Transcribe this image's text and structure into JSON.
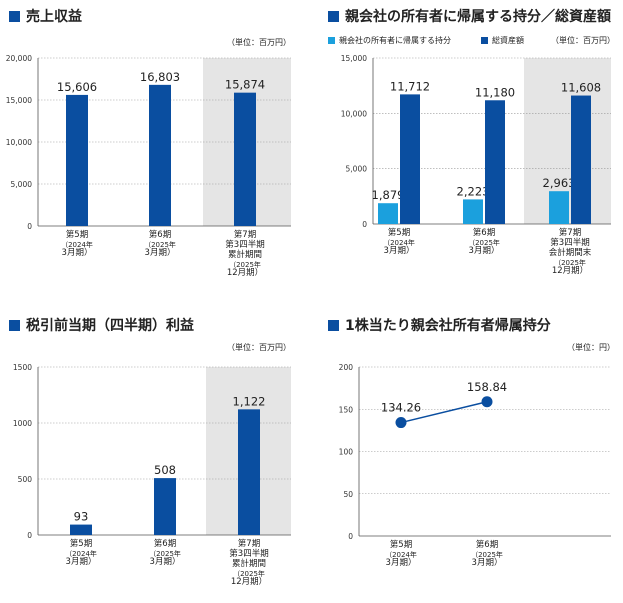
{
  "colors": {
    "dark": "#0a4ea0",
    "light": "#1ba0dd",
    "shade": "#e5e5e5",
    "axis": "#555555",
    "grid": "#999999"
  },
  "chart_data": [
    {
      "id": "revenue",
      "type": "bar",
      "title": "売上収益",
      "unit": "（単位：百万円）",
      "ylim": [
        0,
        20000
      ],
      "yticks": [
        "20,000",
        "15,000",
        "10,000",
        "5,000",
        "0"
      ],
      "ytick_values": [
        20000,
        15000,
        10000,
        5000,
        0
      ],
      "categories": [
        [
          "第5期",
          "（2024年",
          "3月期）"
        ],
        [
          "第6期",
          "（2025年",
          "3月期）"
        ],
        [
          "第7期",
          "第3四半期",
          "累計期間",
          "（2025年",
          "12月期）"
        ]
      ],
      "shaded_category": 2,
      "series": [
        {
          "name": "売上収益",
          "values": [
            15606,
            16803,
            15874
          ],
          "labels": [
            "15,606",
            "16,803",
            "15,874"
          ]
        }
      ]
    },
    {
      "id": "equity",
      "type": "bar",
      "title": "親会社の所有者に帰属する持分／総資産額",
      "unit": "（単位：百万円）",
      "legend": [
        "親会社の所有者に帰属する持分",
        "総資産額"
      ],
      "ylim": [
        0,
        15000
      ],
      "yticks": [
        "15,000",
        "10,000",
        "5,000",
        "0"
      ],
      "ytick_values": [
        15000,
        10000,
        5000,
        0
      ],
      "categories": [
        [
          "第5期",
          "（2024年",
          "3月期）"
        ],
        [
          "第6期",
          "（2025年",
          "3月期）"
        ],
        [
          "第7期",
          "第3四半期",
          "会計期間末",
          "（2025年",
          "12月期）"
        ]
      ],
      "shaded_category": 2,
      "series": [
        {
          "name": "親会社の所有者に帰属する持分",
          "values": [
            1879,
            2223,
            2963
          ],
          "labels": [
            "1,879",
            "2,223",
            "2,963"
          ]
        },
        {
          "name": "総資産額",
          "values": [
            11712,
            11180,
            11608
          ],
          "labels": [
            "11,712",
            "11,180",
            "11,608"
          ]
        }
      ]
    },
    {
      "id": "pretax",
      "type": "bar",
      "title": "税引前当期（四半期）利益",
      "unit": "（単位：百万円）",
      "ylim": [
        0,
        1500
      ],
      "yticks": [
        "1500",
        "1000",
        "500",
        "0"
      ],
      "ytick_values": [
        1500,
        1000,
        500,
        0
      ],
      "categories": [
        [
          "第5期",
          "（2024年",
          "3月期）"
        ],
        [
          "第6期",
          "（2025年",
          "3月期）"
        ],
        [
          "第7期",
          "第3四半期",
          "累計期間",
          "（2025年",
          "12月期）"
        ]
      ],
      "shaded_category": 2,
      "series": [
        {
          "name": "税引前利益",
          "values": [
            93,
            508,
            1122
          ],
          "labels": [
            "93",
            "508",
            "1,122"
          ]
        }
      ]
    },
    {
      "id": "eps",
      "type": "line",
      "title": "1株当たり親会社所有者帰属持分",
      "unit": "（単位：円）",
      "ylim": [
        0,
        200
      ],
      "yticks": [
        "200",
        "150",
        "100",
        "50",
        "0"
      ],
      "ytick_values": [
        200,
        150,
        100,
        50,
        0
      ],
      "categories": [
        [
          "第5期",
          "（2024年",
          "3月期）"
        ],
        [
          "第6期",
          "（2025年",
          "3月期）"
        ]
      ],
      "series": [
        {
          "name": "1株当たり親会社所有者帰属持分",
          "values": [
            134.26,
            158.84
          ],
          "labels": [
            "134.26",
            "158.84"
          ]
        }
      ]
    }
  ]
}
